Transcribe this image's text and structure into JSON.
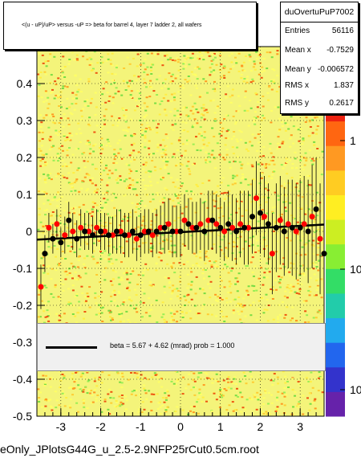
{
  "title": "<(u - uP)/uP> versus -uP => beta for barrel 4, layer 7 ladder 2, all wafers",
  "stats": {
    "name": "duOvertuPuP7002",
    "rows": [
      {
        "key": "Entries",
        "value": "56116"
      },
      {
        "key": "Mean x",
        "value": "-0.7529"
      },
      {
        "key": "Mean y",
        "value": "-0.006572"
      },
      {
        "key": "RMS x",
        "value": "1.837"
      },
      {
        "key": "RMS y",
        "value": "0.2617"
      }
    ]
  },
  "fit": {
    "label": "beta =     5.67 +   4.62 (mrad) prob = 1.000"
  },
  "footer": "eOnly_JPlotsG44G_u_2.5-2.9NFP25rCut0.5cm.root",
  "colors": {
    "red_points": "#ff0000",
    "black_points": "#000000",
    "fit_line": "#000000"
  },
  "chart_data": {
    "type": "scatter",
    "xlim": [
      -3.6,
      3.6
    ],
    "ylim": [
      -0.5,
      0.5
    ],
    "x_ticks": [
      -3,
      -2,
      -1,
      0,
      1,
      2,
      3
    ],
    "y_ticks": [
      -0.5,
      -0.4,
      -0.3,
      -0.2,
      -0.1,
      0,
      0.1,
      0.2,
      0.3,
      0.4
    ],
    "z_tick_labels": [
      "1",
      "10",
      "10",
      "10"
    ],
    "grid": true,
    "legend_position": "bottom",
    "fit_line": {
      "slope": 0.00567,
      "intercept": -0.002
    },
    "series": [
      {
        "marker": "red",
        "points": [
          {
            "x": -3.5,
            "y": -0.15,
            "err": 0.06
          },
          {
            "x": -3.3,
            "y": 0.01,
            "err": 0.04
          },
          {
            "x": -3.1,
            "y": 0.02,
            "err": 0.04
          },
          {
            "x": -2.9,
            "y": -0.01,
            "err": 0.05
          },
          {
            "x": -2.7,
            "y": 0.0,
            "err": 0.05
          },
          {
            "x": -2.5,
            "y": 0.01,
            "err": 0.05
          },
          {
            "x": -2.3,
            "y": 0.0,
            "err": 0.05
          },
          {
            "x": -2.1,
            "y": 0.01,
            "err": 0.05
          },
          {
            "x": -1.9,
            "y": 0.0,
            "err": 0.05
          },
          {
            "x": -1.7,
            "y": -0.01,
            "err": 0.05
          },
          {
            "x": -1.5,
            "y": 0.0,
            "err": 0.06
          },
          {
            "x": -1.3,
            "y": -0.01,
            "err": 0.06
          },
          {
            "x": -1.1,
            "y": -0.02,
            "err": 0.06
          },
          {
            "x": -0.9,
            "y": 0.0,
            "err": 0.06
          },
          {
            "x": -0.7,
            "y": -0.01,
            "err": 0.06
          },
          {
            "x": -0.5,
            "y": 0.01,
            "err": 0.06
          },
          {
            "x": -0.3,
            "y": 0.02,
            "err": 0.07
          },
          {
            "x": -0.1,
            "y": 0.0,
            "err": 0.07
          },
          {
            "x": 0.1,
            "y": 0.03,
            "err": 0.07
          },
          {
            "x": 0.3,
            "y": 0.01,
            "err": 0.07
          },
          {
            "x": 0.5,
            "y": 0.02,
            "err": 0.07
          },
          {
            "x": 0.7,
            "y": 0.03,
            "err": 0.08
          },
          {
            "x": 0.9,
            "y": 0.02,
            "err": 0.08
          },
          {
            "x": 1.1,
            "y": 0.0,
            "err": 0.08
          },
          {
            "x": 1.3,
            "y": 0.01,
            "err": 0.09
          },
          {
            "x": 1.5,
            "y": 0.02,
            "err": 0.09
          },
          {
            "x": 1.7,
            "y": 0.01,
            "err": 0.1
          },
          {
            "x": 1.9,
            "y": 0.09,
            "err": 0.1
          },
          {
            "x": 2.1,
            "y": 0.04,
            "err": 0.11
          },
          {
            "x": 2.3,
            "y": -0.06,
            "err": 0.11
          },
          {
            "x": 2.5,
            "y": 0.03,
            "err": 0.12
          },
          {
            "x": 2.7,
            "y": 0.02,
            "err": 0.12
          },
          {
            "x": 2.9,
            "y": 0.0,
            "err": 0.13
          },
          {
            "x": 3.1,
            "y": 0.02,
            "err": 0.13
          },
          {
            "x": 3.3,
            "y": 0.04,
            "err": 0.14
          },
          {
            "x": 3.5,
            "y": -0.02,
            "err": 0.15
          }
        ]
      },
      {
        "marker": "black",
        "points": [
          {
            "x": -3.4,
            "y": -0.06,
            "err": 0.05
          },
          {
            "x": -3.2,
            "y": -0.02,
            "err": 0.04
          },
          {
            "x": -3.0,
            "y": -0.03,
            "err": 0.04
          },
          {
            "x": -2.8,
            "y": 0.03,
            "err": 0.05
          },
          {
            "x": -2.6,
            "y": -0.02,
            "err": 0.05
          },
          {
            "x": -2.4,
            "y": 0.0,
            "err": 0.05
          },
          {
            "x": -2.2,
            "y": -0.01,
            "err": 0.05
          },
          {
            "x": -2.0,
            "y": 0.0,
            "err": 0.05
          },
          {
            "x": -1.8,
            "y": -0.01,
            "err": 0.05
          },
          {
            "x": -1.6,
            "y": 0.0,
            "err": 0.06
          },
          {
            "x": -1.4,
            "y": -0.01,
            "err": 0.06
          },
          {
            "x": -1.2,
            "y": 0.0,
            "err": 0.06
          },
          {
            "x": -1.0,
            "y": -0.01,
            "err": 0.06
          },
          {
            "x": -0.8,
            "y": 0.0,
            "err": 0.06
          },
          {
            "x": -0.6,
            "y": 0.0,
            "err": 0.06
          },
          {
            "x": -0.4,
            "y": 0.01,
            "err": 0.07
          },
          {
            "x": -0.2,
            "y": 0.0,
            "err": 0.07
          },
          {
            "x": 0.0,
            "y": 0.0,
            "err": 0.07
          },
          {
            "x": 0.2,
            "y": 0.02,
            "err": 0.07
          },
          {
            "x": 0.4,
            "y": 0.01,
            "err": 0.07
          },
          {
            "x": 0.6,
            "y": 0.0,
            "err": 0.08
          },
          {
            "x": 0.8,
            "y": 0.03,
            "err": 0.08
          },
          {
            "x": 1.0,
            "y": 0.01,
            "err": 0.08
          },
          {
            "x": 1.2,
            "y": 0.02,
            "err": 0.09
          },
          {
            "x": 1.4,
            "y": 0.0,
            "err": 0.09
          },
          {
            "x": 1.6,
            "y": 0.01,
            "err": 0.1
          },
          {
            "x": 1.8,
            "y": 0.04,
            "err": 0.1
          },
          {
            "x": 2.0,
            "y": 0.05,
            "err": 0.11
          },
          {
            "x": 2.2,
            "y": 0.02,
            "err": 0.11
          },
          {
            "x": 2.4,
            "y": 0.01,
            "err": 0.12
          },
          {
            "x": 2.6,
            "y": 0.0,
            "err": 0.12
          },
          {
            "x": 2.8,
            "y": 0.01,
            "err": 0.13
          },
          {
            "x": 3.0,
            "y": 0.01,
            "err": 0.13
          },
          {
            "x": 3.2,
            "y": 0.0,
            "err": 0.14
          },
          {
            "x": 3.4,
            "y": 0.06,
            "err": 0.14
          },
          {
            "x": 3.6,
            "y": -0.06,
            "err": 0.15
          }
        ]
      }
    ]
  }
}
